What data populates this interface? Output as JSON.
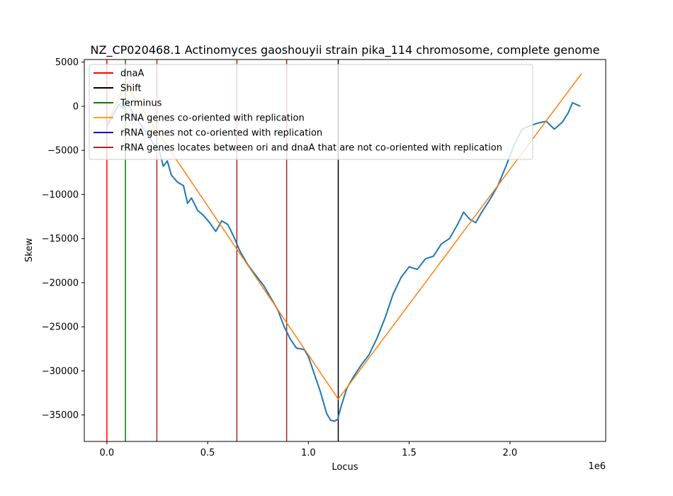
{
  "chart_data": {
    "type": "line",
    "title": "NZ_CP020468.1 Actinomyces gaoshouyii strain pika_114 chromosome, complete genome",
    "xlabel": "Locus",
    "ylabel": "Skew",
    "x_offset_text": "1e6",
    "xlim": [
      -112000,
      2475000
    ],
    "ylim": [
      -38000,
      5300
    ],
    "xticks": [
      0,
      500000,
      1000000,
      1500000,
      2000000
    ],
    "xtick_labels": [
      "0.0",
      "0.5",
      "1.0",
      "1.5",
      "2.0"
    ],
    "yticks": [
      -35000,
      -30000,
      -25000,
      -20000,
      -15000,
      -10000,
      -5000,
      0,
      5000
    ],
    "ytick_labels": [
      "−35000",
      "−30000",
      "−25000",
      "−20000",
      "−15000",
      "−10000",
      "−5000",
      "0",
      "5000"
    ],
    "colors": {
      "skew": "#1f77b4",
      "fit": "#ff7f0e",
      "dnaA": "#ff0000",
      "shift": "#000000",
      "terminus": "#008000",
      "rrna_co": "#ffa500",
      "rrna_not_co": "#0000cd",
      "rrna_between": "#b22222"
    },
    "legend": {
      "placement": "top-left",
      "entries": [
        {
          "label": "dnaA",
          "color": "#ff0000"
        },
        {
          "label": "Shift",
          "color": "#000000"
        },
        {
          "label": "Terminus",
          "color": "#008000"
        },
        {
          "label": "rRNA genes co-oriented with replication",
          "color": "#ffa500"
        },
        {
          "label": "rRNA genes not co-oriented with replication",
          "color": "#0000cd"
        },
        {
          "label": "rRNA genes locates between ori and dnaA that are not co-oriented with replication",
          "color": "#b22222"
        }
      ]
    },
    "vertical_lines": [
      {
        "name": "dnaA",
        "x": 0,
        "color": "#ff0000"
      },
      {
        "name": "Terminus",
        "x": 92000,
        "color": "#008000"
      },
      {
        "name": "rRNA between ori and dnaA",
        "x": 248000,
        "color": "#b22222"
      },
      {
        "name": "rRNA between ori and dnaA",
        "x": 645000,
        "color": "#b22222"
      },
      {
        "name": "rRNA between ori and dnaA",
        "x": 892000,
        "color": "#b22222"
      },
      {
        "name": "Shift",
        "x": 1148000,
        "color": "#000000"
      }
    ],
    "series": [
      {
        "name": "skew",
        "color": "#1f77b4",
        "points": [
          [
            0,
            -2300
          ],
          [
            30000,
            -1000
          ],
          [
            60000,
            200
          ],
          [
            80000,
            -200
          ],
          [
            100000,
            400
          ],
          [
            130000,
            -800
          ],
          [
            160000,
            -1800
          ],
          [
            200000,
            -3200
          ],
          [
            230000,
            -4200
          ],
          [
            260000,
            -5000
          ],
          [
            280000,
            -6800
          ],
          [
            300000,
            -6200
          ],
          [
            320000,
            -7800
          ],
          [
            350000,
            -8600
          ],
          [
            380000,
            -9000
          ],
          [
            400000,
            -11000
          ],
          [
            420000,
            -10400
          ],
          [
            450000,
            -11800
          ],
          [
            480000,
            -12400
          ],
          [
            510000,
            -13200
          ],
          [
            540000,
            -14200
          ],
          [
            570000,
            -13000
          ],
          [
            600000,
            -13400
          ],
          [
            630000,
            -14800
          ],
          [
            660000,
            -16400
          ],
          [
            700000,
            -18000
          ],
          [
            740000,
            -19200
          ],
          [
            780000,
            -20400
          ],
          [
            820000,
            -22000
          ],
          [
            850000,
            -23200
          ],
          [
            880000,
            -25000
          ],
          [
            910000,
            -26400
          ],
          [
            940000,
            -27400
          ],
          [
            980000,
            -27600
          ],
          [
            1000000,
            -28400
          ],
          [
            1030000,
            -30400
          ],
          [
            1060000,
            -32400
          ],
          [
            1090000,
            -34800
          ],
          [
            1110000,
            -35600
          ],
          [
            1130000,
            -35700
          ],
          [
            1145000,
            -35500
          ],
          [
            1160000,
            -34200
          ],
          [
            1190000,
            -32000
          ],
          [
            1220000,
            -30800
          ],
          [
            1260000,
            -29400
          ],
          [
            1300000,
            -28200
          ],
          [
            1340000,
            -26300
          ],
          [
            1380000,
            -24000
          ],
          [
            1420000,
            -21300
          ],
          [
            1460000,
            -19400
          ],
          [
            1500000,
            -18200
          ],
          [
            1540000,
            -18500
          ],
          [
            1580000,
            -17300
          ],
          [
            1620000,
            -17000
          ],
          [
            1660000,
            -15600
          ],
          [
            1700000,
            -15000
          ],
          [
            1740000,
            -13400
          ],
          [
            1770000,
            -12000
          ],
          [
            1800000,
            -12800
          ],
          [
            1830000,
            -13200
          ],
          [
            1860000,
            -12000
          ],
          [
            1900000,
            -10600
          ],
          [
            1940000,
            -9000
          ],
          [
            1980000,
            -6800
          ],
          [
            2020000,
            -4400
          ],
          [
            2060000,
            -2600
          ],
          [
            2100000,
            -2200
          ],
          [
            2140000,
            -1900
          ],
          [
            2180000,
            -1700
          ],
          [
            2220000,
            -2600
          ],
          [
            2260000,
            -1800
          ],
          [
            2290000,
            -700
          ],
          [
            2310000,
            400
          ],
          [
            2330000,
            200
          ],
          [
            2350000,
            0
          ]
        ]
      },
      {
        "name": "fit",
        "color": "#ff7f0e",
        "points": [
          [
            0,
            -2000
          ],
          [
            92000,
            2500
          ],
          [
            1148000,
            -33200
          ],
          [
            2355000,
            3700
          ]
        ]
      }
    ]
  }
}
